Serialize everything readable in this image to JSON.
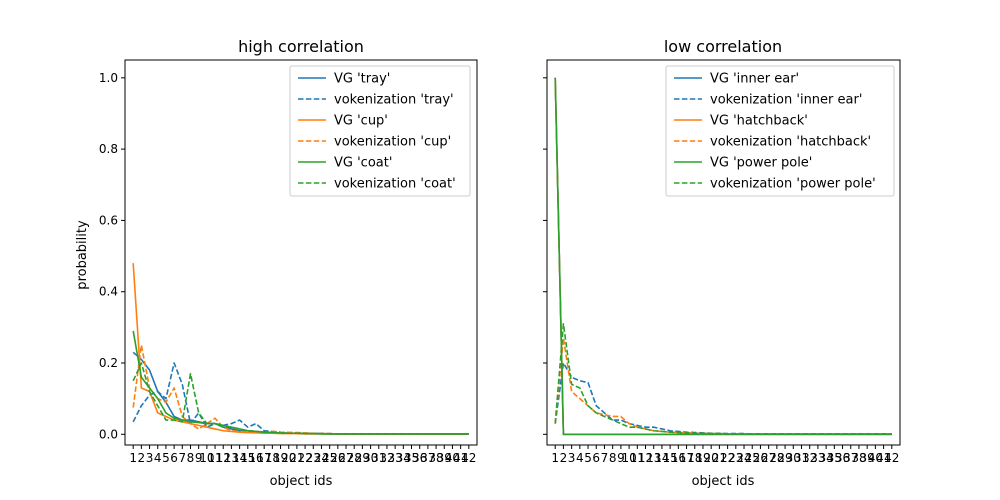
{
  "chart_data": [
    {
      "type": "line",
      "title": "high correlation",
      "xlabel": "object ids",
      "ylabel": "probability",
      "ylim": [
        -0.03,
        1.05
      ],
      "xlim": [
        0,
        43
      ],
      "categories": [
        "1",
        "2",
        "3",
        "4",
        "5",
        "6",
        "7",
        "8",
        "9",
        "10",
        "11",
        "12",
        "13",
        "14",
        "15",
        "16",
        "17",
        "18",
        "19",
        "20",
        "21",
        "22",
        "23",
        "24",
        "25",
        "26",
        "27",
        "28",
        "29",
        "30",
        "31",
        "32",
        "33",
        "34",
        "35",
        "36",
        "37",
        "38",
        "39",
        "40",
        "41",
        "42"
      ],
      "yticks": [
        "0.0",
        "0.2",
        "0.4",
        "0.6",
        "0.8",
        "1.0"
      ],
      "legend_position": "top-right",
      "series": [
        {
          "name": "VG 'tray'",
          "color": "#1f77b4",
          "dash": "solid",
          "values": [
            0.23,
            0.21,
            0.18,
            0.12,
            0.09,
            0.05,
            0.04,
            0.04,
            0.035,
            0.03,
            0.03,
            0.02,
            0.015,
            0.01,
            0.01,
            0.008,
            0.006,
            0.005,
            0.004,
            0.003,
            0.003,
            0.002,
            0.002,
            0.002,
            0.001,
            0.001,
            0.001,
            0.001,
            0.001,
            0.001,
            0.001,
            0.001,
            0.001,
            0.001,
            0.001,
            0.001,
            0.001,
            0.001,
            0.001,
            0.001,
            0.001,
            0.001
          ]
        },
        {
          "name": "vokenization 'tray'",
          "color": "#1f77b4",
          "dash": "dashed",
          "values": [
            0.035,
            0.08,
            0.11,
            0.12,
            0.1,
            0.2,
            0.14,
            0.03,
            0.06,
            0.02,
            0.03,
            0.025,
            0.03,
            0.04,
            0.02,
            0.03,
            0.01,
            0.008,
            0.006,
            0.005,
            0.004,
            0.003,
            0.003,
            0.002,
            0.002,
            0.001,
            0.001,
            0.001,
            0.001,
            0.001,
            0.001,
            0.001,
            0.001,
            0.001,
            0.001,
            0.001,
            0.001,
            0.001,
            0.001,
            0.001,
            0.001,
            0.001
          ]
        },
        {
          "name": "VG 'cup'",
          "color": "#ff7f0e",
          "dash": "solid",
          "values": [
            0.48,
            0.13,
            0.12,
            0.06,
            0.05,
            0.04,
            0.035,
            0.03,
            0.025,
            0.02,
            0.015,
            0.01,
            0.008,
            0.006,
            0.005,
            0.004,
            0.003,
            0.003,
            0.002,
            0.002,
            0.002,
            0.001,
            0.001,
            0.001,
            0.001,
            0.001,
            0.001,
            0.001,
            0.001,
            0.001,
            0.001,
            0.001,
            0.001,
            0.001,
            0.001,
            0.001,
            0.001,
            0.001,
            0.001,
            0.001,
            0.001,
            0.001
          ]
        },
        {
          "name": "vokenization 'cup'",
          "color": "#ff7f0e",
          "dash": "dashed",
          "values": [
            0.075,
            0.25,
            0.13,
            0.1,
            0.09,
            0.13,
            0.05,
            0.03,
            0.015,
            0.03,
            0.045,
            0.02,
            0.01,
            0.008,
            0.006,
            0.005,
            0.004,
            0.008,
            0.006,
            0.005,
            0.005,
            0.004,
            0.003,
            0.002,
            0.002,
            0.001,
            0.001,
            0.001,
            0.001,
            0.001,
            0.001,
            0.001,
            0.001,
            0.001,
            0.001,
            0.001,
            0.001,
            0.001,
            0.001,
            0.001,
            0.001,
            0.001
          ]
        },
        {
          "name": "VG 'coat'",
          "color": "#2ca02c",
          "dash": "solid",
          "values": [
            0.29,
            0.16,
            0.13,
            0.1,
            0.06,
            0.045,
            0.04,
            0.035,
            0.033,
            0.03,
            0.03,
            0.025,
            0.02,
            0.015,
            0.01,
            0.008,
            0.006,
            0.005,
            0.004,
            0.003,
            0.003,
            0.002,
            0.002,
            0.001,
            0.001,
            0.001,
            0.001,
            0.001,
            0.001,
            0.001,
            0.001,
            0.001,
            0.001,
            0.001,
            0.001,
            0.001,
            0.001,
            0.001,
            0.001,
            0.001,
            0.001,
            0.001
          ]
        },
        {
          "name": "vokenization 'coat'",
          "color": "#2ca02c",
          "dash": "dashed",
          "values": [
            0.15,
            0.2,
            0.12,
            0.08,
            0.04,
            0.04,
            0.035,
            0.17,
            0.06,
            0.03,
            0.03,
            0.02,
            0.02,
            0.015,
            0.01,
            0.008,
            0.006,
            0.005,
            0.004,
            0.003,
            0.003,
            0.002,
            0.002,
            0.002,
            0.001,
            0.001,
            0.001,
            0.001,
            0.001,
            0.001,
            0.001,
            0.001,
            0.001,
            0.001,
            0.001,
            0.001,
            0.001,
            0.001,
            0.001,
            0.001,
            0.001,
            0.001
          ]
        }
      ]
    },
    {
      "type": "line",
      "title": "low correlation",
      "xlabel": "object ids",
      "ylabel": "",
      "ylim": [
        -0.03,
        1.05
      ],
      "xlim": [
        0,
        43
      ],
      "categories": [
        "1",
        "2",
        "3",
        "4",
        "5",
        "6",
        "7",
        "8",
        "9",
        "10",
        "11",
        "12",
        "13",
        "14",
        "15",
        "16",
        "17",
        "18",
        "19",
        "20",
        "21",
        "22",
        "23",
        "24",
        "25",
        "26",
        "27",
        "28",
        "29",
        "30",
        "31",
        "32",
        "33",
        "34",
        "35",
        "36",
        "37",
        "38",
        "39",
        "40",
        "41",
        "42"
      ],
      "yticks": [
        "0.0",
        "0.2",
        "0.4",
        "0.6",
        "0.8",
        "1.0"
      ],
      "legend_position": "top-right",
      "series": [
        {
          "name": "VG 'inner ear'",
          "color": "#1f77b4",
          "dash": "solid",
          "values": [
            1.0,
            0.0,
            0.0,
            0.0,
            0.0,
            0.0,
            0.0,
            0.0,
            0.0,
            0.0,
            0.0,
            0.0,
            0.0,
            0.0,
            0.0,
            0.0,
            0.0,
            0.0,
            0.0,
            0.0,
            0.0,
            0.0,
            0.0,
            0.0,
            0.0,
            0.0,
            0.0,
            0.0,
            0.0,
            0.0,
            0.0,
            0.0,
            0.0,
            0.0,
            0.0,
            0.0,
            0.0,
            0.0,
            0.0,
            0.0,
            0.0,
            0.0
          ]
        },
        {
          "name": "vokenization 'inner ear'",
          "color": "#1f77b4",
          "dash": "dashed",
          "values": [
            0.03,
            0.2,
            0.16,
            0.15,
            0.145,
            0.08,
            0.06,
            0.04,
            0.04,
            0.03,
            0.025,
            0.02,
            0.02,
            0.015,
            0.01,
            0.008,
            0.006,
            0.005,
            0.004,
            0.003,
            0.003,
            0.002,
            0.002,
            0.002,
            0.001,
            0.001,
            0.001,
            0.001,
            0.001,
            0.001,
            0.001,
            0.001,
            0.001,
            0.001,
            0.001,
            0.001,
            0.001,
            0.001,
            0.001,
            0.001,
            0.001,
            0.001
          ]
        },
        {
          "name": "VG 'hatchback'",
          "color": "#ff7f0e",
          "dash": "solid",
          "values": [
            1.0,
            0.0,
            0.0,
            0.0,
            0.0,
            0.0,
            0.0,
            0.0,
            0.0,
            0.0,
            0.0,
            0.0,
            0.0,
            0.0,
            0.0,
            0.0,
            0.0,
            0.0,
            0.0,
            0.0,
            0.0,
            0.0,
            0.0,
            0.0,
            0.0,
            0.0,
            0.0,
            0.0,
            0.0,
            0.0,
            0.0,
            0.0,
            0.0,
            0.0,
            0.0,
            0.0,
            0.0,
            0.0,
            0.0,
            0.0,
            0.0,
            0.0
          ]
        },
        {
          "name": "vokenization 'hatchback'",
          "color": "#ff7f0e",
          "dash": "dashed",
          "values": [
            0.03,
            0.27,
            0.12,
            0.1,
            0.08,
            0.06,
            0.055,
            0.05,
            0.05,
            0.03,
            0.02,
            0.015,
            0.01,
            0.008,
            0.006,
            0.005,
            0.004,
            0.003,
            0.003,
            0.002,
            0.002,
            0.001,
            0.001,
            0.001,
            0.001,
            0.001,
            0.001,
            0.001,
            0.001,
            0.001,
            0.001,
            0.001,
            0.001,
            0.001,
            0.001,
            0.001,
            0.001,
            0.001,
            0.001,
            0.001,
            0.001,
            0.001
          ]
        },
        {
          "name": "VG 'power pole'",
          "color": "#2ca02c",
          "dash": "solid",
          "values": [
            1.0,
            0.0,
            0.0,
            0.0,
            0.0,
            0.0,
            0.0,
            0.0,
            0.0,
            0.0,
            0.0,
            0.0,
            0.0,
            0.0,
            0.0,
            0.0,
            0.0,
            0.0,
            0.0,
            0.0,
            0.0,
            0.0,
            0.0,
            0.0,
            0.0,
            0.0,
            0.0,
            0.0,
            0.0,
            0.0,
            0.0,
            0.0,
            0.0,
            0.0,
            0.0,
            0.0,
            0.0,
            0.0,
            0.0,
            0.0,
            0.0,
            0.0
          ]
        },
        {
          "name": "vokenization 'power pole'",
          "color": "#2ca02c",
          "dash": "dashed",
          "values": [
            0.03,
            0.31,
            0.14,
            0.13,
            0.08,
            0.06,
            0.05,
            0.04,
            0.03,
            0.02,
            0.02,
            0.015,
            0.01,
            0.008,
            0.006,
            0.005,
            0.004,
            0.003,
            0.003,
            0.002,
            0.002,
            0.001,
            0.001,
            0.001,
            0.001,
            0.001,
            0.001,
            0.001,
            0.001,
            0.001,
            0.001,
            0.001,
            0.001,
            0.001,
            0.001,
            0.001,
            0.001,
            0.001,
            0.001,
            0.001,
            0.001,
            0.001
          ]
        }
      ]
    }
  ]
}
